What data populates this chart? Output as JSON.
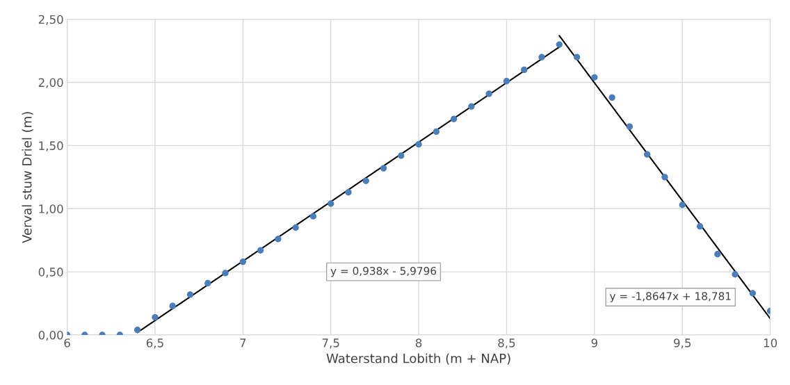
{
  "chart_data": {
    "type": "scatter",
    "xlabel": "Waterstand Lobith (m + NAP)",
    "ylabel": "Verval stuw Driel (m)",
    "series": [
      {
        "color": "#4a7ebb",
        "marker": "circle",
        "x": [
          6.0,
          6.1,
          6.2,
          6.3,
          6.4,
          6.5,
          6.6,
          6.7,
          6.8,
          6.9,
          7.0,
          7.1,
          7.2,
          7.3,
          7.4,
          7.5,
          7.6,
          7.7,
          7.8,
          7.9,
          8.0,
          8.1,
          8.2,
          8.3,
          8.4,
          8.5,
          8.6,
          8.7,
          8.8,
          8.9,
          9.0,
          9.1,
          9.2,
          9.3,
          9.4,
          9.5,
          9.6,
          9.7,
          9.8,
          9.9,
          10.0
        ],
        "values": [
          0,
          0,
          0,
          0,
          0.04,
          0.14,
          0.23,
          0.32,
          0.41,
          0.49,
          0.58,
          0.67,
          0.76,
          0.85,
          0.94,
          1.04,
          1.13,
          1.22,
          1.32,
          1.42,
          1.51,
          1.61,
          1.71,
          1.81,
          1.91,
          2.01,
          2.1,
          2.2,
          2.3,
          2.2,
          2.04,
          1.88,
          1.65,
          1.43,
          1.25,
          1.03,
          0.86,
          0.64,
          0.48,
          0.33,
          0.19
        ]
      },
      {
        "type": "line",
        "color": "#000000",
        "line_style": "solid",
        "x": [
          6.4,
          8.8
        ],
        "values": [
          0.02,
          2.28
        ]
      },
      {
        "type": "line",
        "color": "#000000",
        "line_style": "solid",
        "x": [
          8.8,
          10.0
        ],
        "values": [
          2.37,
          0.13
        ]
      }
    ],
    "annotations": [
      "y = 0,938x - 5,9796",
      "y = -1,8647x + 18,781"
    ],
    "xlim": [
      6,
      10
    ],
    "ylim": [
      0,
      2.5
    ],
    "xticks": [
      6,
      {
        "value": 6.5,
        "label": "6,5"
      },
      7,
      {
        "value": 7.5,
        "label": "7,5"
      },
      8,
      {
        "value": 8.5,
        "label": "8,5"
      },
      9,
      {
        "value": 9.5,
        "label": "9,5"
      },
      10
    ],
    "yticks": [
      {
        "value": 0,
        "label": "0,00"
      },
      {
        "value": 0.5,
        "label": "0,50"
      },
      {
        "value": 1,
        "label": "1,00"
      },
      {
        "value": 1.5,
        "label": "1,50"
      },
      {
        "value": 2,
        "label": "2,00"
      },
      {
        "value": 2.5,
        "label": "2,50"
      }
    ],
    "grid": true,
    "legend": false
  }
}
